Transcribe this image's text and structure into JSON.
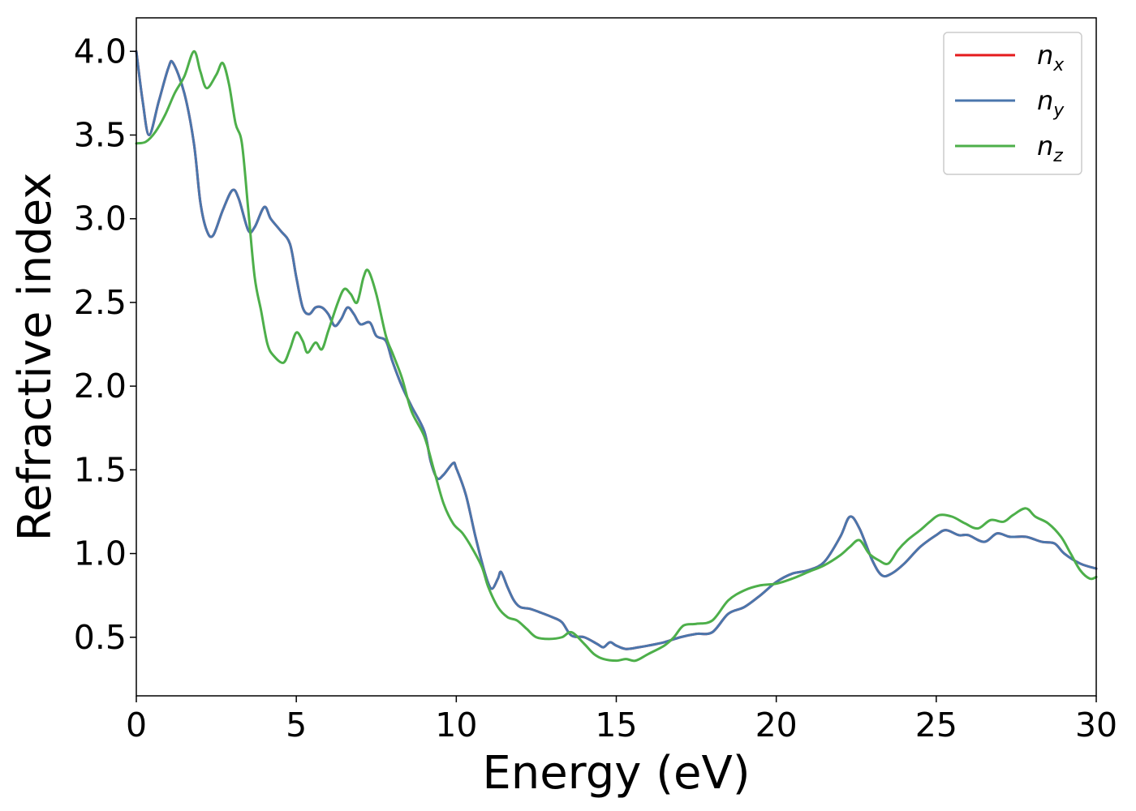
{
  "chart_data": {
    "type": "line",
    "title": "",
    "xlabel": "Energy (eV)",
    "ylabel": "Refractive index",
    "xlim": [
      0,
      30
    ],
    "ylim": [
      0.15,
      4.2
    ],
    "xticks": [
      0,
      5,
      10,
      15,
      20,
      25,
      30
    ],
    "xtick_labels": [
      "0",
      "5",
      "10",
      "15",
      "20",
      "25",
      "30"
    ],
    "yticks": [
      0.5,
      1.0,
      1.5,
      2.0,
      2.5,
      3.0,
      3.5,
      4.0
    ],
    "ytick_labels": [
      "0.5",
      "1.0",
      "1.5",
      "2.0",
      "2.5",
      "3.0",
      "3.5",
      "4.0"
    ],
    "grid": false,
    "legend_position": "top-right",
    "series": [
      {
        "name": "n_x",
        "label_base": "n",
        "label_sub": "x",
        "color": "#e41a1c",
        "hidden_under": "n_y",
        "points": [
          [
            0,
            4.0
          ],
          [
            0.2,
            3.7
          ],
          [
            0.4,
            3.5
          ],
          [
            0.7,
            3.7
          ],
          [
            1.0,
            3.9
          ],
          [
            1.15,
            3.93
          ],
          [
            1.5,
            3.75
          ],
          [
            1.8,
            3.45
          ],
          [
            2.0,
            3.1
          ],
          [
            2.2,
            2.93
          ],
          [
            2.4,
            2.9
          ],
          [
            2.7,
            3.05
          ],
          [
            3.0,
            3.17
          ],
          [
            3.2,
            3.12
          ],
          [
            3.5,
            2.93
          ],
          [
            3.7,
            2.95
          ],
          [
            4.0,
            3.07
          ],
          [
            4.2,
            3.0
          ],
          [
            4.5,
            2.93
          ],
          [
            4.8,
            2.85
          ],
          [
            5.0,
            2.65
          ],
          [
            5.2,
            2.47
          ],
          [
            5.4,
            2.43
          ],
          [
            5.6,
            2.47
          ],
          [
            5.8,
            2.47
          ],
          [
            6.0,
            2.43
          ],
          [
            6.2,
            2.36
          ],
          [
            6.4,
            2.4
          ],
          [
            6.6,
            2.47
          ],
          [
            6.8,
            2.43
          ],
          [
            7.0,
            2.37
          ],
          [
            7.3,
            2.38
          ],
          [
            7.5,
            2.3
          ],
          [
            7.8,
            2.27
          ],
          [
            8.0,
            2.15
          ],
          [
            8.3,
            2.0
          ],
          [
            8.6,
            1.88
          ],
          [
            9.0,
            1.73
          ],
          [
            9.2,
            1.55
          ],
          [
            9.4,
            1.45
          ],
          [
            9.6,
            1.47
          ],
          [
            9.9,
            1.54
          ],
          [
            10.0,
            1.51
          ],
          [
            10.3,
            1.35
          ],
          [
            10.6,
            1.1
          ],
          [
            10.9,
            0.88
          ],
          [
            11.1,
            0.79
          ],
          [
            11.3,
            0.85
          ],
          [
            11.4,
            0.89
          ],
          [
            11.6,
            0.8
          ],
          [
            11.8,
            0.72
          ],
          [
            12.0,
            0.68
          ],
          [
            12.3,
            0.67
          ],
          [
            12.6,
            0.65
          ],
          [
            13.0,
            0.62
          ],
          [
            13.3,
            0.59
          ],
          [
            13.6,
            0.51
          ],
          [
            14.0,
            0.5
          ],
          [
            14.4,
            0.46
          ],
          [
            14.6,
            0.44
          ],
          [
            14.8,
            0.47
          ],
          [
            15.0,
            0.45
          ],
          [
            15.3,
            0.43
          ],
          [
            15.7,
            0.44
          ],
          [
            16.0,
            0.45
          ],
          [
            16.5,
            0.47
          ],
          [
            17.0,
            0.5
          ],
          [
            17.5,
            0.52
          ],
          [
            18.0,
            0.53
          ],
          [
            18.5,
            0.64
          ],
          [
            19.0,
            0.68
          ],
          [
            19.5,
            0.75
          ],
          [
            20.0,
            0.83
          ],
          [
            20.5,
            0.88
          ],
          [
            21.0,
            0.9
          ],
          [
            21.5,
            0.95
          ],
          [
            22.0,
            1.1
          ],
          [
            22.3,
            1.22
          ],
          [
            22.6,
            1.15
          ],
          [
            23.0,
            0.96
          ],
          [
            23.3,
            0.87
          ],
          [
            23.6,
            0.88
          ],
          [
            24.0,
            0.94
          ],
          [
            24.5,
            1.04
          ],
          [
            25.0,
            1.11
          ],
          [
            25.3,
            1.14
          ],
          [
            25.7,
            1.11
          ],
          [
            26.0,
            1.11
          ],
          [
            26.5,
            1.07
          ],
          [
            26.9,
            1.12
          ],
          [
            27.3,
            1.1
          ],
          [
            27.8,
            1.1
          ],
          [
            28.3,
            1.07
          ],
          [
            28.7,
            1.06
          ],
          [
            29.0,
            1.0
          ],
          [
            29.5,
            0.94
          ],
          [
            30.0,
            0.91
          ]
        ]
      },
      {
        "name": "n_y",
        "label_base": "n",
        "label_sub": "y",
        "color": "#4a76ac",
        "points": [
          [
            0,
            4.0
          ],
          [
            0.2,
            3.7
          ],
          [
            0.4,
            3.5
          ],
          [
            0.7,
            3.7
          ],
          [
            1.0,
            3.9
          ],
          [
            1.15,
            3.93
          ],
          [
            1.5,
            3.75
          ],
          [
            1.8,
            3.45
          ],
          [
            2.0,
            3.1
          ],
          [
            2.2,
            2.93
          ],
          [
            2.4,
            2.9
          ],
          [
            2.7,
            3.05
          ],
          [
            3.0,
            3.17
          ],
          [
            3.2,
            3.12
          ],
          [
            3.5,
            2.93
          ],
          [
            3.7,
            2.95
          ],
          [
            4.0,
            3.07
          ],
          [
            4.2,
            3.0
          ],
          [
            4.5,
            2.93
          ],
          [
            4.8,
            2.85
          ],
          [
            5.0,
            2.65
          ],
          [
            5.2,
            2.47
          ],
          [
            5.4,
            2.43
          ],
          [
            5.6,
            2.47
          ],
          [
            5.8,
            2.47
          ],
          [
            6.0,
            2.43
          ],
          [
            6.2,
            2.36
          ],
          [
            6.4,
            2.4
          ],
          [
            6.6,
            2.47
          ],
          [
            6.8,
            2.43
          ],
          [
            7.0,
            2.37
          ],
          [
            7.3,
            2.38
          ],
          [
            7.5,
            2.3
          ],
          [
            7.8,
            2.27
          ],
          [
            8.0,
            2.15
          ],
          [
            8.3,
            2.0
          ],
          [
            8.6,
            1.88
          ],
          [
            9.0,
            1.73
          ],
          [
            9.2,
            1.55
          ],
          [
            9.4,
            1.45
          ],
          [
            9.6,
            1.47
          ],
          [
            9.9,
            1.54
          ],
          [
            10.0,
            1.51
          ],
          [
            10.3,
            1.35
          ],
          [
            10.6,
            1.1
          ],
          [
            10.9,
            0.88
          ],
          [
            11.1,
            0.79
          ],
          [
            11.3,
            0.85
          ],
          [
            11.4,
            0.89
          ],
          [
            11.6,
            0.8
          ],
          [
            11.8,
            0.72
          ],
          [
            12.0,
            0.68
          ],
          [
            12.3,
            0.67
          ],
          [
            12.6,
            0.65
          ],
          [
            13.0,
            0.62
          ],
          [
            13.3,
            0.59
          ],
          [
            13.6,
            0.51
          ],
          [
            14.0,
            0.5
          ],
          [
            14.4,
            0.46
          ],
          [
            14.6,
            0.44
          ],
          [
            14.8,
            0.47
          ],
          [
            15.0,
            0.45
          ],
          [
            15.3,
            0.43
          ],
          [
            15.7,
            0.44
          ],
          [
            16.0,
            0.45
          ],
          [
            16.5,
            0.47
          ],
          [
            17.0,
            0.5
          ],
          [
            17.5,
            0.52
          ],
          [
            18.0,
            0.53
          ],
          [
            18.5,
            0.64
          ],
          [
            19.0,
            0.68
          ],
          [
            19.5,
            0.75
          ],
          [
            20.0,
            0.83
          ],
          [
            20.5,
            0.88
          ],
          [
            21.0,
            0.9
          ],
          [
            21.5,
            0.95
          ],
          [
            22.0,
            1.1
          ],
          [
            22.3,
            1.22
          ],
          [
            22.6,
            1.15
          ],
          [
            23.0,
            0.96
          ],
          [
            23.3,
            0.87
          ],
          [
            23.6,
            0.88
          ],
          [
            24.0,
            0.94
          ],
          [
            24.5,
            1.04
          ],
          [
            25.0,
            1.11
          ],
          [
            25.3,
            1.14
          ],
          [
            25.7,
            1.11
          ],
          [
            26.0,
            1.11
          ],
          [
            26.5,
            1.07
          ],
          [
            26.9,
            1.12
          ],
          [
            27.3,
            1.1
          ],
          [
            27.8,
            1.1
          ],
          [
            28.3,
            1.07
          ],
          [
            28.7,
            1.06
          ],
          [
            29.0,
            1.0
          ],
          [
            29.5,
            0.94
          ],
          [
            30.0,
            0.91
          ]
        ]
      },
      {
        "name": "n_z",
        "label_base": "n",
        "label_sub": "z",
        "color": "#4daf4a",
        "points": [
          [
            0,
            3.45
          ],
          [
            0.3,
            3.46
          ],
          [
            0.6,
            3.52
          ],
          [
            0.9,
            3.62
          ],
          [
            1.2,
            3.75
          ],
          [
            1.5,
            3.85
          ],
          [
            1.8,
            4.0
          ],
          [
            2.0,
            3.88
          ],
          [
            2.2,
            3.78
          ],
          [
            2.5,
            3.86
          ],
          [
            2.7,
            3.93
          ],
          [
            2.9,
            3.8
          ],
          [
            3.1,
            3.57
          ],
          [
            3.3,
            3.45
          ],
          [
            3.5,
            3.05
          ],
          [
            3.7,
            2.65
          ],
          [
            3.9,
            2.45
          ],
          [
            4.1,
            2.25
          ],
          [
            4.3,
            2.18
          ],
          [
            4.6,
            2.14
          ],
          [
            4.8,
            2.22
          ],
          [
            5.0,
            2.32
          ],
          [
            5.2,
            2.27
          ],
          [
            5.35,
            2.2
          ],
          [
            5.6,
            2.26
          ],
          [
            5.8,
            2.22
          ],
          [
            6.0,
            2.33
          ],
          [
            6.3,
            2.5
          ],
          [
            6.5,
            2.58
          ],
          [
            6.7,
            2.55
          ],
          [
            6.9,
            2.5
          ],
          [
            7.1,
            2.65
          ],
          [
            7.25,
            2.69
          ],
          [
            7.5,
            2.55
          ],
          [
            7.8,
            2.3
          ],
          [
            8.0,
            2.2
          ],
          [
            8.3,
            2.05
          ],
          [
            8.6,
            1.85
          ],
          [
            9.0,
            1.7
          ],
          [
            9.3,
            1.5
          ],
          [
            9.6,
            1.3
          ],
          [
            9.9,
            1.18
          ],
          [
            10.2,
            1.12
          ],
          [
            10.5,
            1.03
          ],
          [
            10.8,
            0.92
          ],
          [
            11.0,
            0.8
          ],
          [
            11.3,
            0.68
          ],
          [
            11.6,
            0.62
          ],
          [
            11.9,
            0.6
          ],
          [
            12.2,
            0.55
          ],
          [
            12.5,
            0.5
          ],
          [
            12.9,
            0.49
          ],
          [
            13.3,
            0.5
          ],
          [
            13.6,
            0.53
          ],
          [
            14.0,
            0.46
          ],
          [
            14.3,
            0.4
          ],
          [
            14.6,
            0.37
          ],
          [
            15.0,
            0.36
          ],
          [
            15.3,
            0.37
          ],
          [
            15.6,
            0.36
          ],
          [
            16.0,
            0.4
          ],
          [
            16.5,
            0.45
          ],
          [
            16.8,
            0.5
          ],
          [
            17.1,
            0.57
          ],
          [
            17.5,
            0.58
          ],
          [
            18.0,
            0.6
          ],
          [
            18.5,
            0.72
          ],
          [
            19.0,
            0.78
          ],
          [
            19.5,
            0.81
          ],
          [
            20.0,
            0.82
          ],
          [
            20.5,
            0.85
          ],
          [
            21.0,
            0.89
          ],
          [
            21.5,
            0.93
          ],
          [
            22.0,
            0.99
          ],
          [
            22.3,
            1.04
          ],
          [
            22.6,
            1.08
          ],
          [
            22.9,
            1.0
          ],
          [
            23.2,
            0.96
          ],
          [
            23.5,
            0.94
          ],
          [
            23.8,
            1.02
          ],
          [
            24.1,
            1.08
          ],
          [
            24.5,
            1.14
          ],
          [
            24.8,
            1.19
          ],
          [
            25.1,
            1.23
          ],
          [
            25.5,
            1.22
          ],
          [
            25.9,
            1.18
          ],
          [
            26.3,
            1.15
          ],
          [
            26.7,
            1.2
          ],
          [
            27.1,
            1.19
          ],
          [
            27.4,
            1.23
          ],
          [
            27.8,
            1.27
          ],
          [
            28.1,
            1.22
          ],
          [
            28.5,
            1.18
          ],
          [
            28.9,
            1.1
          ],
          [
            29.2,
            1.0
          ],
          [
            29.5,
            0.9
          ],
          [
            29.8,
            0.85
          ],
          [
            30.0,
            0.86
          ]
        ]
      }
    ]
  }
}
